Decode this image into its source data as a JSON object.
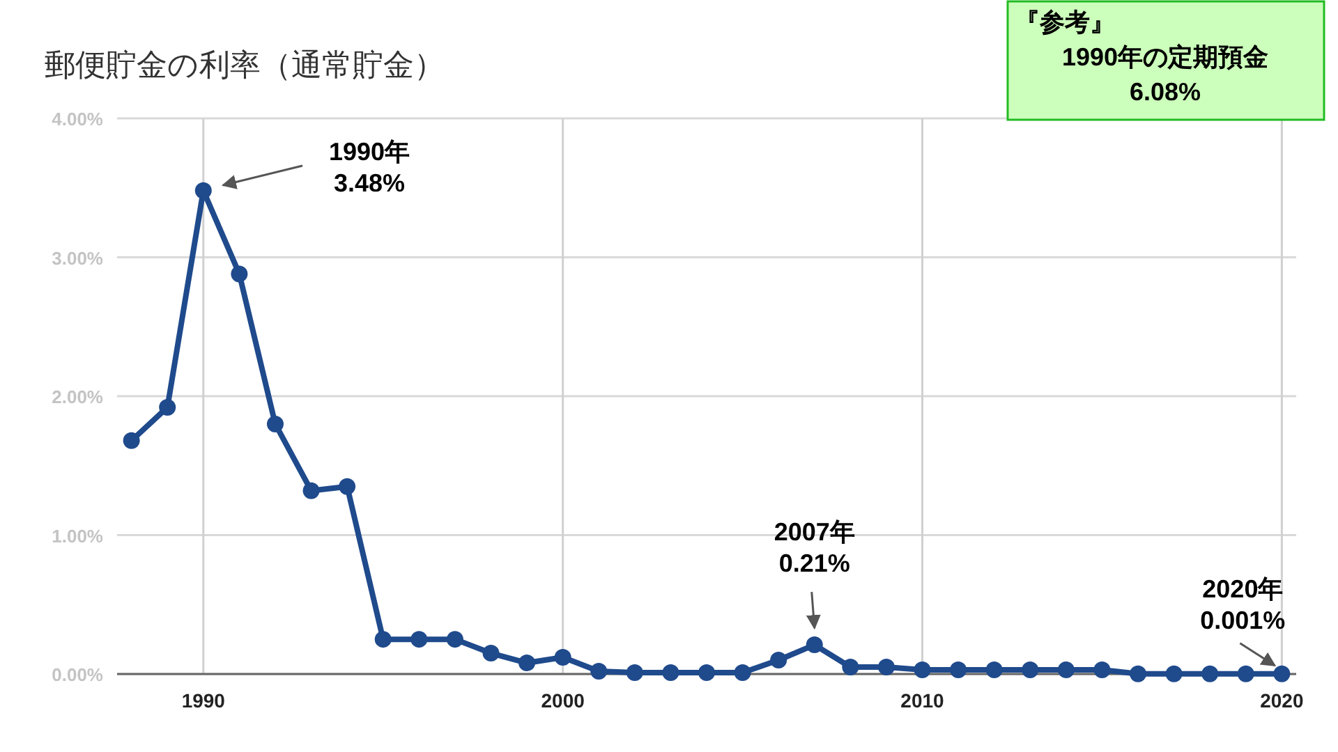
{
  "chart_data": {
    "type": "line",
    "title": "郵便貯金の利率（通常貯金）",
    "x": [
      1988,
      1989,
      1990,
      1991,
      1992,
      1993,
      1994,
      1995,
      1996,
      1997,
      1998,
      1999,
      2000,
      2001,
      2002,
      2003,
      2004,
      2005,
      2006,
      2007,
      2008,
      2009,
      2010,
      2011,
      2012,
      2013,
      2014,
      2015,
      2016,
      2017,
      2018,
      2019,
      2020
    ],
    "series": [
      {
        "color": "#1f4a8c",
        "values": [
          1.68,
          1.92,
          3.48,
          2.88,
          1.8,
          1.32,
          1.35,
          0.25,
          0.25,
          0.25,
          0.15,
          0.08,
          0.12,
          0.02,
          0.01,
          0.01,
          0.01,
          0.01,
          0.1,
          0.21,
          0.05,
          0.05,
          0.03,
          0.03,
          0.03,
          0.03,
          0.03,
          0.03,
          0.001,
          0.001,
          0.001,
          0.001,
          0.001
        ]
      }
    ],
    "xlim": [
      1987.6,
      2020.4
    ],
    "xticks": [
      1990,
      2000,
      2010,
      2020
    ],
    "ylim": [
      0,
      4
    ],
    "yticks": [
      {
        "value": 0,
        "label": "0.00%"
      },
      {
        "value": 1,
        "label": "1.00%"
      },
      {
        "value": 2,
        "label": "2.00%"
      },
      {
        "value": 3,
        "label": "3.00%"
      },
      {
        "value": 4,
        "label": "4.00%"
      }
    ],
    "grid": true,
    "marker": "circle",
    "line_style": "solid",
    "annotations": [
      "1990年\n3.48%",
      {
        "text": "2007年\n0.21%",
        "x": 2007,
        "y": 0.21
      },
      {
        "text": "2020年\n0.001%",
        "x": 2020,
        "y": 0.001
      },
      "『参考』\n1990年の定期預金\n6.08%"
    ]
  }
}
